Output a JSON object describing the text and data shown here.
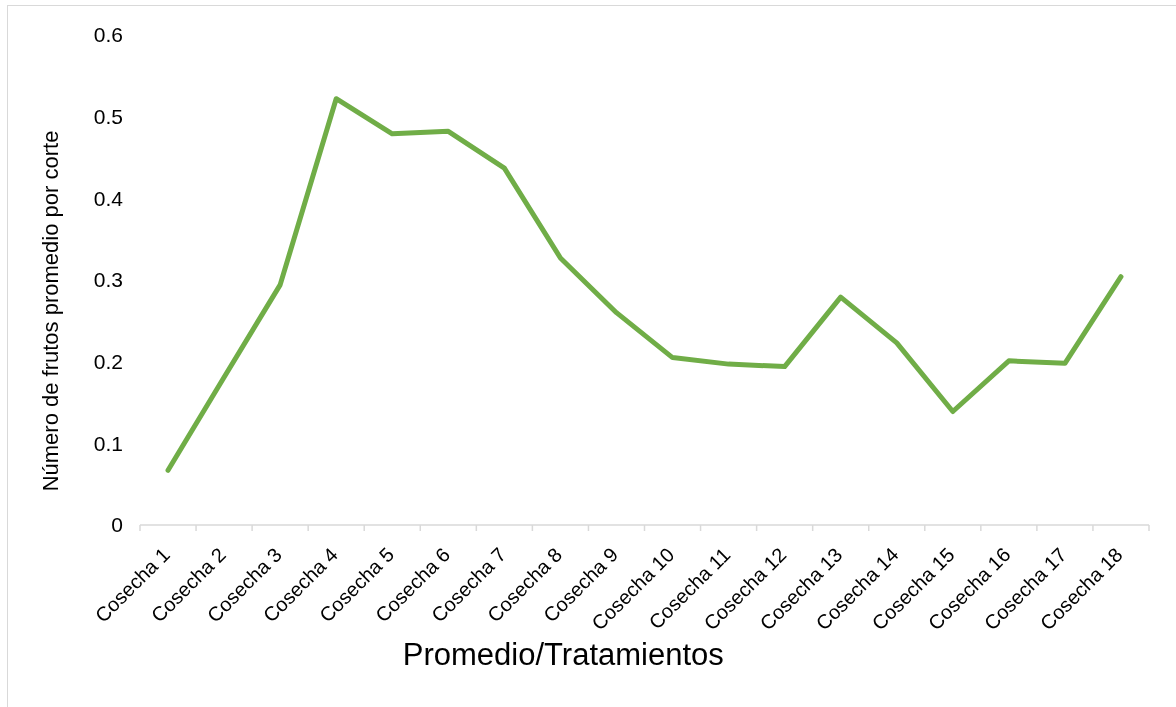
{
  "chart_data": {
    "type": "line",
    "xlabel": "Promedio/Tratamientos",
    "ylabel": "Número de frutos promedio por corte",
    "categories": [
      "Cosecha 1",
      "Cosecha 2",
      "Cosecha 3",
      "Cosecha 4",
      "Cosecha 5",
      "Cosecha 6",
      "Cosecha 7",
      "Cosecha 8",
      "Cosecha 9",
      "Cosecha 10",
      "Cosecha 11",
      "Cosecha 12",
      "Cosecha 13",
      "Cosecha 14",
      "Cosecha 15",
      "Cosecha 16",
      "Cosecha 17",
      "Cosecha 18"
    ],
    "series": [
      {
        "color": "#70ad47",
        "values": [
          0.067,
          0.181,
          0.294,
          0.522,
          0.479,
          0.482,
          0.437,
          0.327,
          0.26,
          0.205,
          0.197,
          0.194,
          0.279,
          0.223,
          0.139,
          0.201,
          0.198,
          0.304
        ]
      }
    ],
    "ylim": [
      0,
      0.6
    ],
    "yticks": [
      0,
      0.1,
      0.2,
      0.3,
      0.4,
      0.5,
      0.6
    ]
  }
}
